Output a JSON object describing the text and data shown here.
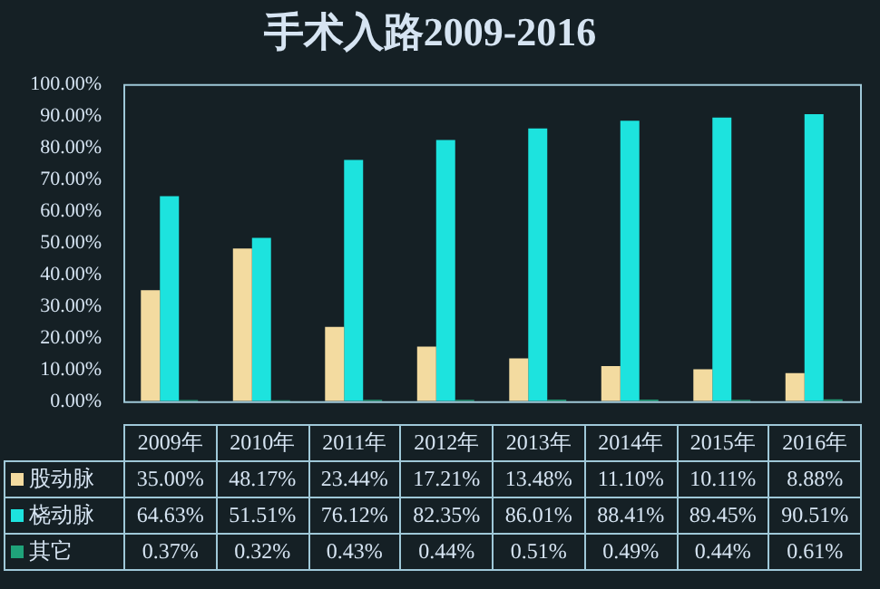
{
  "chart_data": {
    "type": "bar",
    "title": "手术入路2009-2016",
    "categories": [
      "2009年",
      "2010年",
      "2011年",
      "2012年",
      "2013年",
      "2014年",
      "2015年",
      "2016年"
    ],
    "series": [
      {
        "name": "股动脉",
        "color": "#f3dba0",
        "values": [
          35.0,
          48.17,
          23.44,
          17.21,
          13.48,
          11.1,
          10.11,
          8.88
        ],
        "value_labels": [
          "35.00%",
          "48.17%",
          "23.44%",
          "17.21%",
          "13.48%",
          "11.10%",
          "10.11%",
          "8.88%"
        ]
      },
      {
        "name": "桡动脉",
        "color": "#1de3de",
        "values": [
          64.63,
          51.51,
          76.12,
          82.35,
          86.01,
          88.41,
          89.45,
          90.51
        ],
        "value_labels": [
          "64.63%",
          "51.51%",
          "76.12%",
          "82.35%",
          "86.01%",
          "88.41%",
          "89.45%",
          "90.51%"
        ]
      },
      {
        "name": "其它",
        "color": "#1fa37a",
        "values": [
          0.37,
          0.32,
          0.43,
          0.44,
          0.51,
          0.49,
          0.44,
          0.61
        ],
        "value_labels": [
          "0.37%",
          "0.32%",
          "0.43%",
          "0.44%",
          "0.51%",
          "0.49%",
          "0.44%",
          "0.61%"
        ]
      }
    ],
    "ylim": [
      0,
      100
    ],
    "yticks": [
      {
        "value": 0,
        "label": "0.00%"
      },
      {
        "value": 10,
        "label": "10.00%"
      },
      {
        "value": 20,
        "label": "20.00%"
      },
      {
        "value": 30,
        "label": "30.00%"
      },
      {
        "value": 40,
        "label": "40.00%"
      },
      {
        "value": 50,
        "label": "50.00%"
      },
      {
        "value": 60,
        "label": "60.00%"
      },
      {
        "value": 70,
        "label": "70.00%"
      },
      {
        "value": 80,
        "label": "80.00%"
      },
      {
        "value": 90,
        "label": "90.00%"
      },
      {
        "value": 100,
        "label": "100.00%"
      }
    ],
    "grid": false,
    "legend": "bottom left"
  }
}
